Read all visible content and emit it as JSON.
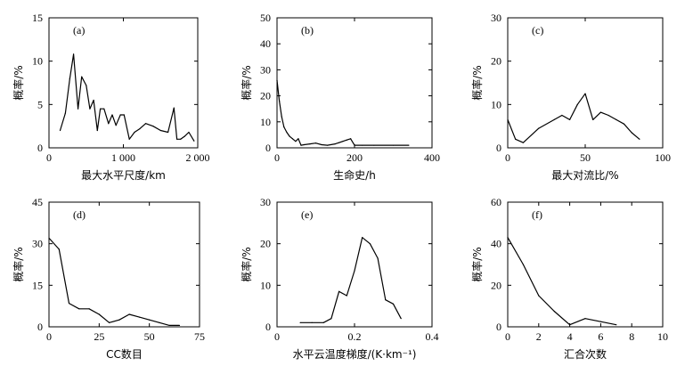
{
  "chart_data": [
    {
      "type": "line",
      "panel_label": "(a)",
      "xlabel": "最大水平尺度/km",
      "ylabel": "概率/%",
      "xlim": [
        0,
        2000
      ],
      "ylim": [
        0,
        15
      ],
      "xticks": [
        0,
        1000,
        2000
      ],
      "xtick_labels": [
        "0",
        "1 000",
        "2 000"
      ],
      "yticks": [
        0,
        5,
        10,
        15
      ],
      "ytick_labels": [
        "0",
        "5",
        "10",
        "15"
      ],
      "grid": false,
      "x": [
        150,
        220,
        280,
        330,
        390,
        440,
        500,
        550,
        600,
        650,
        690,
        740,
        800,
        850,
        900,
        960,
        1010,
        1080,
        1150,
        1220,
        1300,
        1400,
        1500,
        1600,
        1680,
        1720,
        1770,
        1820,
        1880,
        1950
      ],
      "y": [
        2.0,
        4.0,
        8.0,
        10.8,
        4.5,
        8.2,
        7.2,
        4.5,
        5.5,
        2.0,
        4.5,
        4.5,
        2.8,
        3.8,
        2.6,
        3.8,
        3.8,
        1.0,
        1.8,
        2.2,
        2.8,
        2.5,
        2.0,
        1.8,
        4.6,
        1.0,
        1.0,
        1.3,
        1.8,
        0.8
      ]
    },
    {
      "type": "line",
      "panel_label": "(b)",
      "xlabel": "生命史/h",
      "ylabel": "概率/%",
      "xlim": [
        0,
        400
      ],
      "ylim": [
        0,
        50
      ],
      "xticks": [
        0,
        200,
        400
      ],
      "xtick_labels": [
        "0",
        "200",
        "400"
      ],
      "yticks": [
        0,
        10,
        20,
        30,
        40,
        50
      ],
      "ytick_labels": [
        "0",
        "10",
        "20",
        "30",
        "40",
        "50"
      ],
      "grid": false,
      "x": [
        0,
        6,
        12,
        18,
        25,
        32,
        40,
        48,
        55,
        62,
        70,
        85,
        100,
        115,
        130,
        150,
        160,
        170,
        180,
        190,
        200,
        220,
        250,
        300,
        340
      ],
      "y": [
        26,
        18,
        12,
        8,
        6,
        4.5,
        3.5,
        2.5,
        3.5,
        1.0,
        1.2,
        1.5,
        1.8,
        1.2,
        1.0,
        1.5,
        2.0,
        2.5,
        3.0,
        3.5,
        1.0,
        1.0,
        1.0,
        1.0,
        1.0
      ]
    },
    {
      "type": "line",
      "panel_label": "(c)",
      "xlabel": "最大对流比/%",
      "ylabel": "概率/%",
      "xlim": [
        0,
        100
      ],
      "ylim": [
        0,
        30
      ],
      "xticks": [
        0,
        50,
        100
      ],
      "xtick_labels": [
        "0",
        "50",
        "100"
      ],
      "yticks": [
        0,
        10,
        20,
        30
      ],
      "ytick_labels": [
        "0",
        "10",
        "20",
        "30"
      ],
      "grid": false,
      "x": [
        0,
        5,
        10,
        20,
        30,
        35,
        40,
        45,
        50,
        55,
        60,
        65,
        70,
        75,
        80,
        85
      ],
      "y": [
        6.5,
        2.0,
        1.2,
        4.5,
        6.5,
        7.5,
        6.5,
        10.0,
        12.5,
        6.5,
        8.2,
        7.5,
        6.5,
        5.5,
        3.5,
        2.0
      ]
    },
    {
      "type": "line",
      "panel_label": "(d)",
      "xlabel": "CC数目",
      "ylabel": "概率/%",
      "xlim": [
        0,
        75
      ],
      "ylim": [
        0,
        45
      ],
      "xticks": [
        0,
        25,
        50,
        75
      ],
      "xtick_labels": [
        "0",
        "25",
        "50",
        "75"
      ],
      "yticks": [
        0,
        15,
        30,
        45
      ],
      "ytick_labels": [
        "0",
        "15",
        "30",
        "45"
      ],
      "grid": false,
      "x": [
        0,
        5,
        10,
        15,
        20,
        25,
        30,
        35,
        40,
        45,
        50,
        55,
        60,
        65
      ],
      "y": [
        32,
        28,
        8.5,
        6.5,
        6.5,
        4.5,
        1.5,
        2.5,
        4.5,
        3.5,
        2.5,
        1.5,
        0.5,
        0.5
      ]
    },
    {
      "type": "line",
      "panel_label": "(e)",
      "xlabel": "水平云温度梯度/(K·km⁻¹)",
      "ylabel": "概率/%",
      "xlim": [
        0,
        0.4
      ],
      "ylim": [
        0,
        30
      ],
      "xticks": [
        0,
        0.2,
        0.4
      ],
      "xtick_labels": [
        "0",
        "0.2",
        "0.4"
      ],
      "yticks": [
        0,
        10,
        20,
        30
      ],
      "ytick_labels": [
        "0",
        "10",
        "20",
        "30"
      ],
      "grid": false,
      "x": [
        0.06,
        0.09,
        0.12,
        0.14,
        0.16,
        0.18,
        0.2,
        0.22,
        0.24,
        0.26,
        0.28,
        0.3,
        0.32
      ],
      "y": [
        1.0,
        1.0,
        1.0,
        2.0,
        8.5,
        7.5,
        13.5,
        21.5,
        20.0,
        16.5,
        6.5,
        5.5,
        2.0
      ]
    },
    {
      "type": "line",
      "panel_label": "(f)",
      "xlabel": "汇合次数",
      "ylabel": "概率/%",
      "xlim": [
        0,
        10
      ],
      "ylim": [
        0,
        60
      ],
      "xticks": [
        0,
        2,
        4,
        6,
        8,
        10
      ],
      "xtick_labels": [
        "0",
        "2",
        "4",
        "6",
        "8",
        "10"
      ],
      "yticks": [
        0,
        20,
        40,
        60
      ],
      "ytick_labels": [
        "0",
        "20",
        "40",
        "60"
      ],
      "grid": false,
      "x": [
        0,
        1,
        2,
        3,
        4,
        5,
        6,
        7
      ],
      "y": [
        43,
        30,
        15,
        7.5,
        1.0,
        4.0,
        2.5,
        1.0
      ]
    }
  ]
}
